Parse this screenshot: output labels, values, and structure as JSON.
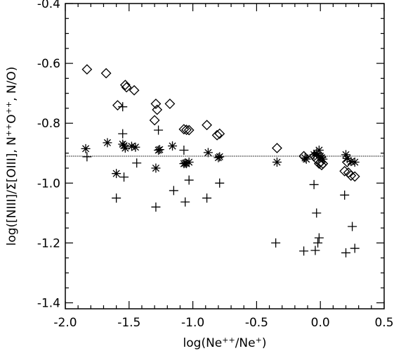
{
  "chart_data": {
    "type": "scatter",
    "xlabel_parts": [
      {
        "t": "log(Ne"
      },
      {
        "t": "++",
        "sup": true
      },
      {
        "t": "/Ne"
      },
      {
        "t": "+",
        "sup": true
      },
      {
        "t": ")"
      }
    ],
    "ylabel_parts": [
      {
        "t": "log([NIII]/Σ[OIII], N"
      },
      {
        "t": "++",
        "sup": true
      },
      {
        "t": "O"
      },
      {
        "t": "++",
        "sup": true
      },
      {
        "t": ", N/O)"
      }
    ],
    "xlim": [
      -2.0,
      0.5
    ],
    "ylim": [
      -1.42,
      -0.4
    ],
    "x_major_ticks": [
      -2.0,
      -1.5,
      -1.0,
      -0.5,
      0.0,
      0.5
    ],
    "y_major_ticks": [
      -1.4,
      -1.2,
      -1.0,
      -0.8,
      -0.6,
      -0.4
    ],
    "x_tick_labels": [
      "-2.0",
      "-1.5",
      "-1.0",
      "-0.5",
      "0.0",
      "0.5"
    ],
    "y_tick_labels": [
      "-1.4",
      "-1.2",
      "-1.0",
      "-0.8",
      "-0.6",
      "-0.4"
    ],
    "reference_line": {
      "y": -0.91,
      "style": "dotted"
    },
    "series": [
      {
        "marker": "diamond",
        "points": [
          [
            -1.83,
            -0.62
          ],
          [
            -1.68,
            -0.633
          ],
          [
            -1.59,
            -0.74
          ],
          [
            -1.53,
            -0.672
          ],
          [
            -1.52,
            -0.68
          ],
          [
            -1.46,
            -0.69
          ],
          [
            -1.29,
            -0.735
          ],
          [
            -1.28,
            -0.755
          ],
          [
            -1.3,
            -0.79
          ],
          [
            -1.18,
            -0.735
          ],
          [
            -1.07,
            -0.82
          ],
          [
            -1.05,
            -0.822
          ],
          [
            -1.03,
            -0.823
          ],
          [
            -0.89,
            -0.806
          ],
          [
            -0.81,
            -0.84
          ],
          [
            -0.79,
            -0.835
          ],
          [
            -0.34,
            -0.883
          ],
          [
            -0.13,
            -0.91
          ],
          [
            -0.05,
            -0.91
          ],
          [
            -0.03,
            -0.92
          ],
          [
            -0.01,
            -0.935
          ],
          [
            0.0,
            -0.93
          ],
          [
            0.01,
            -0.94
          ],
          [
            0.02,
            -0.935
          ],
          [
            0.19,
            -0.96
          ],
          [
            0.21,
            -0.93
          ],
          [
            0.22,
            -0.965
          ],
          [
            0.24,
            -0.975
          ],
          [
            0.27,
            -0.978
          ]
        ]
      },
      {
        "marker": "asterisk",
        "points": [
          [
            -1.84,
            -0.885
          ],
          [
            -1.67,
            -0.865
          ],
          [
            -1.6,
            -0.968
          ],
          [
            -1.55,
            -0.87
          ],
          [
            -1.54,
            -0.875
          ],
          [
            -1.53,
            -0.883
          ],
          [
            -1.48,
            -0.877
          ],
          [
            -1.45,
            -0.88
          ],
          [
            -1.29,
            -0.95
          ],
          [
            -1.27,
            -0.89
          ],
          [
            -1.26,
            -0.888
          ],
          [
            -1.16,
            -0.876
          ],
          [
            -1.07,
            -0.935
          ],
          [
            -1.06,
            -0.933
          ],
          [
            -1.05,
            -0.935
          ],
          [
            -1.03,
            -0.93
          ],
          [
            -0.88,
            -0.898
          ],
          [
            -0.8,
            -0.915
          ],
          [
            -0.79,
            -0.912
          ],
          [
            -0.34,
            -0.93
          ],
          [
            -0.12,
            -0.916
          ],
          [
            -0.11,
            -0.92
          ],
          [
            -0.05,
            -0.905
          ],
          [
            -0.03,
            -0.9
          ],
          [
            -0.01,
            -0.89
          ],
          [
            0.0,
            -0.91
          ],
          [
            0.01,
            -0.915
          ],
          [
            0.02,
            -0.92
          ],
          [
            0.2,
            -0.905
          ],
          [
            0.21,
            -0.918
          ],
          [
            0.24,
            -0.928
          ],
          [
            0.27,
            -0.93
          ]
        ]
      },
      {
        "marker": "plus",
        "points": [
          [
            -1.83,
            -0.912
          ],
          [
            -1.6,
            -1.05
          ],
          [
            -1.55,
            -0.745
          ],
          [
            -1.55,
            -0.835
          ],
          [
            -1.54,
            -0.98
          ],
          [
            -1.44,
            -0.933
          ],
          [
            -1.29,
            -1.08
          ],
          [
            -1.27,
            -0.823
          ],
          [
            -1.15,
            -1.025
          ],
          [
            -1.07,
            -0.89
          ],
          [
            -1.06,
            -1.063
          ],
          [
            -1.03,
            -0.99
          ],
          [
            -0.89,
            -1.05
          ],
          [
            -0.79,
            -1.0
          ],
          [
            -0.35,
            -1.2
          ],
          [
            -0.13,
            -1.227
          ],
          [
            -0.05,
            -1.005
          ],
          [
            -0.04,
            -1.225
          ],
          [
            -0.03,
            -1.1
          ],
          [
            -0.02,
            -1.2
          ],
          [
            -0.01,
            -1.183
          ],
          [
            0.19,
            -1.04
          ],
          [
            0.2,
            -1.233
          ],
          [
            0.25,
            -1.145
          ],
          [
            0.27,
            -1.218
          ]
        ]
      }
    ]
  }
}
